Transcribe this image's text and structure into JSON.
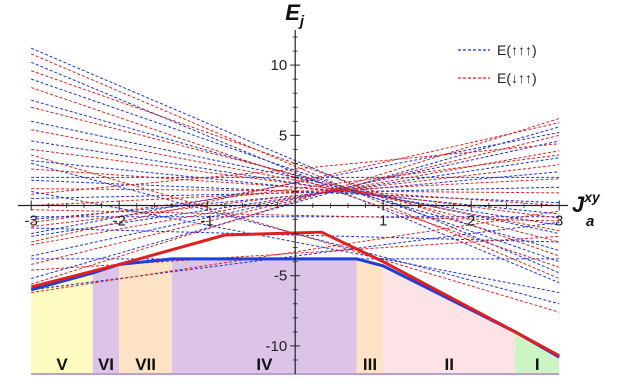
{
  "chart_data": {
    "type": "line",
    "title": "",
    "xlabel": "J",
    "xlabel_sub": "a",
    "xlabel_sup": "xy",
    "ylabel": "E",
    "ylabel_sub": "j",
    "xlim": [
      -3.15,
      3.1
    ],
    "ylim": [
      -12,
      12.5
    ],
    "xticks": [
      {
        "value": -3,
        "label": "-3"
      },
      {
        "value": -2,
        "label": "-2"
      },
      {
        "value": -1,
        "label": "-1"
      },
      {
        "value": 1,
        "label": "1"
      },
      {
        "value": 2,
        "label": "2"
      },
      {
        "value": 3,
        "label": "3"
      }
    ],
    "yticks": [
      {
        "value": -10,
        "label": "-10"
      },
      {
        "value": -5,
        "label": "-5"
      },
      {
        "value": 5,
        "label": "5"
      },
      {
        "value": 10,
        "label": "10"
      }
    ],
    "legend": {
      "position": "top-right",
      "entries": [
        {
          "label": "E(↑↑↑)",
          "color": "#2233cc",
          "style": "dashed"
        },
        {
          "label": "E(↓↑↑)",
          "color": "#dd2222",
          "style": "dashed"
        }
      ]
    },
    "regions": [
      {
        "label": "V",
        "x_start": -3.0,
        "x_end": -2.3,
        "color": "#fdfbc2"
      },
      {
        "label": "VI",
        "x_start": -2.3,
        "x_end": -2.0,
        "color": "#dcc3e8"
      },
      {
        "label": "VII",
        "x_start": -2.0,
        "x_end": -1.4,
        "color": "#fde2c6"
      },
      {
        "label": "IV",
        "x_start": -1.4,
        "x_end": 0.7,
        "color": "#dcc3e8"
      },
      {
        "label": "III",
        "x_start": 0.7,
        "x_end": 1.0,
        "color": "#fde2c6"
      },
      {
        "label": "II",
        "x_start": 1.0,
        "x_end": 2.5,
        "color": "#fde2e6"
      },
      {
        "label": "I",
        "x_start": 2.5,
        "x_end": 3.0,
        "color": "#cff4c4"
      }
    ],
    "ground_state": [
      {
        "name": "E(↑↑↑)",
        "color": "#1f3fd6",
        "x": [
          -3.0,
          -2.3,
          -2.0,
          -1.4,
          0.7,
          1.0,
          2.5,
          3.0
        ],
        "y": [
          -6.0,
          -4.8,
          -4.2,
          -3.8,
          -3.8,
          -4.3,
          -9.0,
          -10.8
        ]
      },
      {
        "name": "E(↓↑↑)",
        "color": "#e02020",
        "x": [
          -3.0,
          -2.0,
          -0.8,
          0.3,
          1.0,
          2.5,
          3.0
        ],
        "y": [
          -5.8,
          -4.2,
          -2.1,
          -1.9,
          -4.0,
          -9.0,
          -10.7
        ]
      }
    ],
    "series": [
      {
        "name": "E(↑↑↑)",
        "color": "#2233cc",
        "style": "dashed",
        "lines": [
          [
            -3,
            11.2,
            3,
            -4.8
          ],
          [
            -3,
            10.2,
            3,
            -5.5
          ],
          [
            -3,
            9.0,
            3,
            -4.0
          ],
          [
            -3,
            7.5,
            3,
            -3.2
          ],
          [
            -3,
            6.0,
            3,
            -2.0
          ],
          [
            -3,
            4.6,
            3,
            -1.4
          ],
          [
            -3,
            3.2,
            3,
            -0.6
          ],
          [
            -3,
            1.8,
            3,
            0.2
          ],
          [
            -3,
            0.5,
            3,
            1.3
          ],
          [
            -3,
            -1.0,
            3,
            2.4
          ],
          [
            -3,
            -2.2,
            3,
            3.4
          ],
          [
            -3,
            -3.6,
            3,
            4.6
          ],
          [
            -3,
            -5.2,
            3,
            5.6
          ],
          [
            -3,
            2.0,
            3,
            2.0
          ],
          [
            -3,
            -0.8,
            3,
            -0.8
          ],
          [
            -3,
            -3.8,
            3,
            -3.8
          ],
          [
            -3,
            -6.0,
            3,
            -1.2
          ],
          [
            -3,
            1.0,
            3,
            -6.2
          ],
          [
            -3,
            3.0,
            3,
            -7.0
          ],
          [
            -3,
            -2.0,
            3,
            5.2
          ],
          [
            -3,
            -1.6,
            3,
            -2.6
          ]
        ]
      },
      {
        "name": "E(↓↑↑)",
        "color": "#dd2222",
        "style": "dashed",
        "lines": [
          [
            -3,
            10.8,
            3,
            -5.2
          ],
          [
            -3,
            9.6,
            3,
            -3.6
          ],
          [
            -3,
            8.4,
            3,
            -4.4
          ],
          [
            -3,
            7.0,
            3,
            -2.6
          ],
          [
            -3,
            5.4,
            3,
            -1.8
          ],
          [
            -3,
            4.0,
            3,
            -0.9
          ],
          [
            -3,
            2.6,
            3,
            0.0
          ],
          [
            -3,
            1.2,
            3,
            0.9
          ],
          [
            -3,
            0.0,
            3,
            1.9
          ],
          [
            -3,
            -1.5,
            3,
            2.9
          ],
          [
            -3,
            -2.8,
            3,
            3.9
          ],
          [
            -3,
            -4.2,
            3,
            5.0
          ],
          [
            -3,
            -5.6,
            3,
            6.2
          ],
          [
            -3,
            -1.2,
            3,
            3.6
          ],
          [
            -3,
            -4.6,
            3,
            -2.2
          ],
          [
            -3,
            -6.2,
            3,
            -0.4
          ],
          [
            -3,
            3.6,
            3,
            -7.6
          ],
          [
            -3,
            -2.6,
            3,
            5.9
          ],
          [
            -3,
            -0.3,
            3,
            -1.1
          ],
          [
            -3,
            0.8,
            3,
            4.4
          ]
        ]
      }
    ]
  }
}
